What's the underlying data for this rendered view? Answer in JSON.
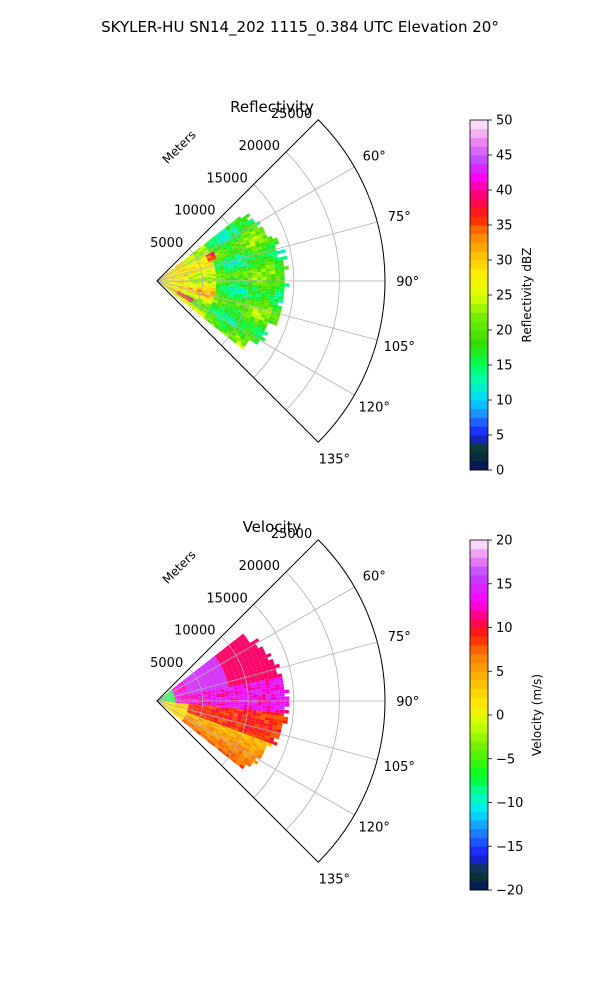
{
  "figure": {
    "title": "SKYLER-HU  SN14_202  1115_0.384 UTC Elevation 20°"
  },
  "colors": {
    "grid": "#b0b0b0",
    "axis": "#000000"
  },
  "chart_data": [
    {
      "type": "heatmap",
      "projection": "polar-sector",
      "title": "Reflectivity",
      "radial_label": "Meters",
      "radial_ticks": [
        5000,
        10000,
        15000,
        20000,
        25000
      ],
      "radial_tick_labels": [
        "5000",
        "10000",
        "15000",
        "20000",
        "25000"
      ],
      "rmax": 25000,
      "angular_range_deg": [
        45,
        135
      ],
      "angular_ticks": [
        60,
        75,
        90,
        105,
        120,
        135
      ],
      "angular_tick_labels": [
        "60°",
        "75°",
        "90°",
        "105°",
        "120°",
        "135°"
      ],
      "grid": true,
      "data_extent": {
        "r_max": 14000,
        "az_range_deg": [
          52,
          128
        ]
      },
      "colorbar": {
        "label": "Reflectivity dBZ",
        "range": [
          0,
          50
        ],
        "ticks": [
          0,
          5,
          10,
          15,
          20,
          25,
          30,
          35,
          40,
          45,
          50
        ],
        "tick_labels": [
          "0",
          "5",
          "10",
          "15",
          "20",
          "25",
          "30",
          "35",
          "40",
          "45",
          "50"
        ],
        "palette": [
          [
            0,
            "#071060"
          ],
          [
            3,
            "#0a3d2a"
          ],
          [
            5,
            "#1a1aff"
          ],
          [
            8,
            "#1e90ff"
          ],
          [
            10,
            "#00d5ff"
          ],
          [
            13,
            "#00ffaa"
          ],
          [
            15,
            "#00ff55"
          ],
          [
            18,
            "#33dd00"
          ],
          [
            22,
            "#77ee00"
          ],
          [
            25,
            "#ddff00"
          ],
          [
            28,
            "#ffee00"
          ],
          [
            31,
            "#ffbb00"
          ],
          [
            34,
            "#ff7700"
          ],
          [
            36,
            "#ff2200"
          ],
          [
            39,
            "#ff0066"
          ],
          [
            42,
            "#ff00ff"
          ],
          [
            44,
            "#bb44ff"
          ],
          [
            47,
            "#ee88ee"
          ],
          [
            50,
            "#fff0ff"
          ]
        ]
      }
    },
    {
      "type": "heatmap",
      "projection": "polar-sector",
      "title": "Velocity",
      "radial_label": "Meters",
      "radial_ticks": [
        5000,
        10000,
        15000,
        20000,
        25000
      ],
      "radial_tick_labels": [
        "5000",
        "10000",
        "15000",
        "20000",
        "25000"
      ],
      "rmax": 25000,
      "angular_range_deg": [
        45,
        135
      ],
      "angular_ticks": [
        60,
        75,
        90,
        105,
        120,
        135
      ],
      "angular_tick_labels": [
        "60°",
        "75°",
        "90°",
        "105°",
        "120°",
        "135°"
      ],
      "grid": true,
      "data_extent": {
        "r_max": 14000,
        "az_range_deg": [
          52,
          128
        ]
      },
      "colorbar": {
        "label": "Velocity (m/s)",
        "range": [
          -20,
          20
        ],
        "ticks": [
          -20,
          -15,
          -10,
          -5,
          0,
          5,
          10,
          15,
          20
        ],
        "tick_labels": [
          "−20",
          "−15",
          "−10",
          "−5",
          "0",
          "5",
          "10",
          "15",
          "20"
        ],
        "palette": [
          [
            -20,
            "#071060"
          ],
          [
            -18,
            "#0a3d2a"
          ],
          [
            -16,
            "#1a1aff"
          ],
          [
            -13,
            "#1e90ff"
          ],
          [
            -11,
            "#00e5ff"
          ],
          [
            -9,
            "#00ffaa"
          ],
          [
            -7,
            "#00ff22"
          ],
          [
            -4,
            "#66ee00"
          ],
          [
            -1,
            "#ccff00"
          ],
          [
            1,
            "#ffee00"
          ],
          [
            4,
            "#ffbb00"
          ],
          [
            7,
            "#ff7700"
          ],
          [
            9,
            "#ff2200"
          ],
          [
            11,
            "#ff0066"
          ],
          [
            13,
            "#ff00ff"
          ],
          [
            16,
            "#bb44ff"
          ],
          [
            18,
            "#ee88ee"
          ],
          [
            20,
            "#fff0ff"
          ]
        ]
      }
    }
  ]
}
